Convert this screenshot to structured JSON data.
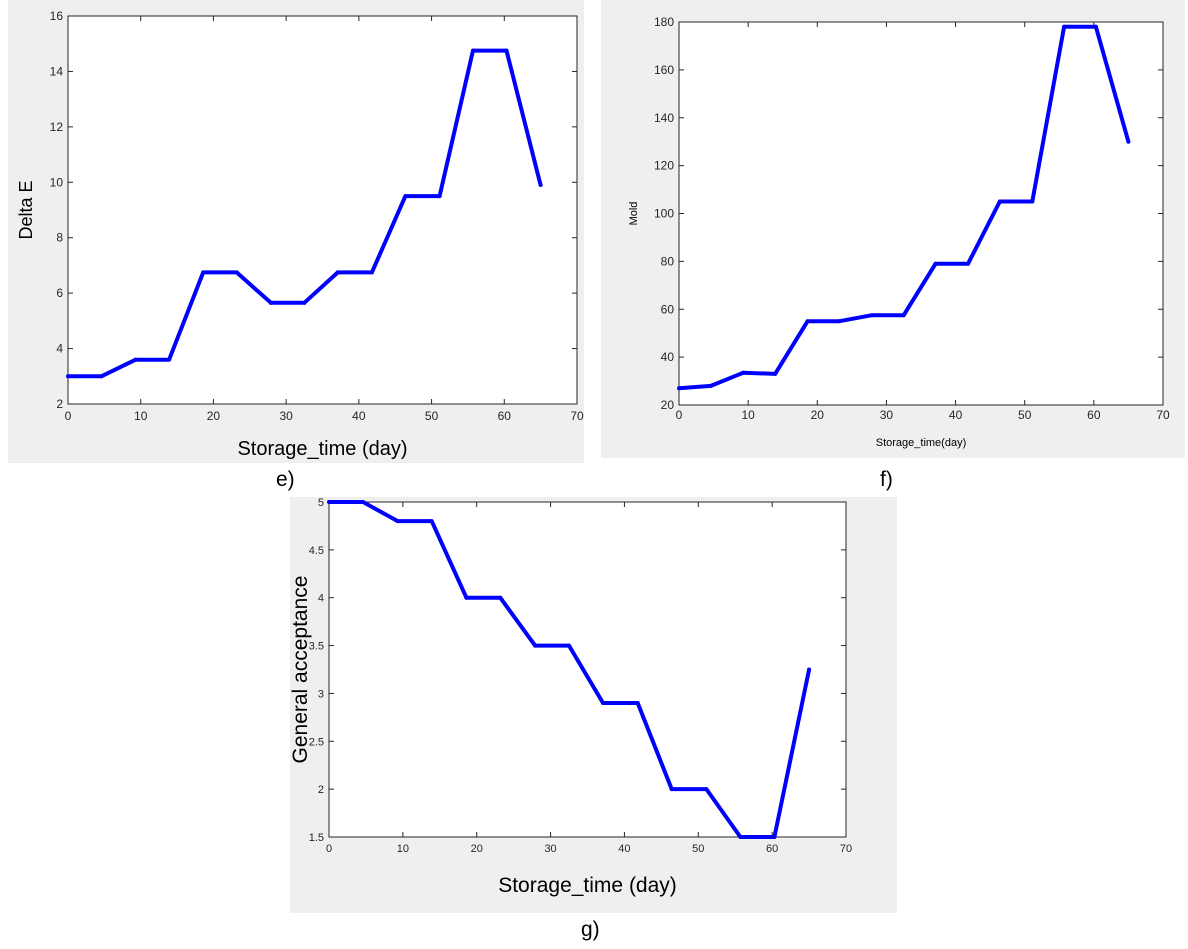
{
  "chart_data": [
    {
      "type": "line",
      "panel_label": "e)",
      "xlabel": "Storage_time (day)",
      "ylabel": "Delta E",
      "xlim": [
        0,
        70
      ],
      "ylim": [
        2,
        16
      ],
      "xticks": [
        0,
        10,
        20,
        30,
        40,
        50,
        60,
        70
      ],
      "xtick_labels": [
        "0",
        "10",
        "20",
        "30",
        "40",
        "50",
        "60",
        "70"
      ],
      "yticks": [
        2,
        4,
        6,
        8,
        10,
        12,
        14,
        16
      ],
      "ytick_labels": [
        "2",
        "4",
        "6",
        "8",
        "10",
        "12",
        "14",
        "16"
      ],
      "grid": false,
      "line_color": "#0000ff",
      "series": [
        {
          "x": [
            0,
            4.6,
            9.3,
            13.9,
            18.6,
            23.2,
            27.9,
            32.5,
            37.1,
            41.8,
            46.4,
            51.1,
            55.7,
            60.3,
            65
          ],
          "y": [
            3.0,
            3.0,
            3.6,
            3.6,
            6.75,
            6.75,
            5.65,
            5.65,
            6.75,
            6.75,
            9.5,
            9.5,
            14.75,
            14.75,
            9.9
          ]
        }
      ]
    },
    {
      "type": "line",
      "panel_label": "f)",
      "xlabel": "Storage_time(day)",
      "ylabel": "Mold",
      "xlim": [
        0,
        70
      ],
      "ylim": [
        20,
        180
      ],
      "xticks": [
        0,
        10,
        20,
        30,
        40,
        50,
        60,
        70
      ],
      "xtick_labels": [
        "0",
        "10",
        "20",
        "30",
        "40",
        "50",
        "60",
        "70"
      ],
      "yticks": [
        20,
        40,
        60,
        80,
        100,
        120,
        140,
        160,
        180
      ],
      "ytick_labels": [
        "20",
        "40",
        "60",
        "80",
        "100",
        "120",
        "140",
        "160",
        "180"
      ],
      "grid": false,
      "line_color": "#0000ff",
      "series": [
        {
          "x": [
            0,
            4.6,
            9.3,
            13.9,
            18.6,
            23.2,
            27.9,
            32.5,
            37.1,
            41.8,
            46.4,
            51.1,
            55.7,
            60.3,
            65
          ],
          "y": [
            27,
            28,
            33.5,
            33,
            55,
            55,
            57.5,
            57.5,
            79,
            79,
            105,
            105,
            178,
            178,
            130
          ]
        }
      ]
    },
    {
      "type": "line",
      "panel_label": "g)",
      "xlabel": "Storage_time (day)",
      "ylabel": "General acceptance",
      "xlim": [
        0,
        70
      ],
      "ylim": [
        1.5,
        5
      ],
      "xticks": [
        0,
        10,
        20,
        30,
        40,
        50,
        60,
        70
      ],
      "xtick_labels": [
        "0",
        "10",
        "20",
        "30",
        "40",
        "50",
        "60",
        "70"
      ],
      "yticks": [
        1.5,
        2,
        2.5,
        3,
        3.5,
        4,
        4.5,
        5
      ],
      "ytick_labels": [
        "1.5",
        "2",
        "2.5",
        "3",
        "3.5",
        "4",
        "4.5",
        "5"
      ],
      "grid": false,
      "line_color": "#0000ff",
      "series": [
        {
          "x": [
            0,
            4.6,
            9.3,
            13.9,
            18.6,
            23.2,
            27.9,
            32.5,
            37.1,
            41.8,
            46.4,
            51.1,
            55.7,
            60.3,
            65
          ],
          "y": [
            5.0,
            5.0,
            4.8,
            4.8,
            4.0,
            4.0,
            3.5,
            3.5,
            2.9,
            2.9,
            2.0,
            2.0,
            1.5,
            1.5,
            3.25
          ]
        }
      ]
    }
  ]
}
